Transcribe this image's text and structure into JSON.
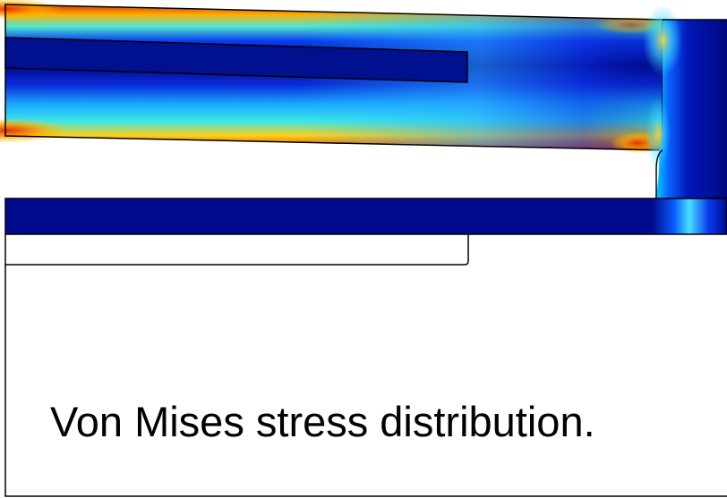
{
  "caption": "Von Mises stress distribution.",
  "colors": {
    "background": "#ffffff",
    "outline": "#000000",
    "low_stress": "#000a8c",
    "mid_stress": "#2fd4ff",
    "high_stress": "#d62a0e",
    "colormap": [
      "#00008f",
      "#0030ff",
      "#00c8ff",
      "#7dff7a",
      "#ffe200",
      "#ff5a00",
      "#b00000"
    ]
  }
}
